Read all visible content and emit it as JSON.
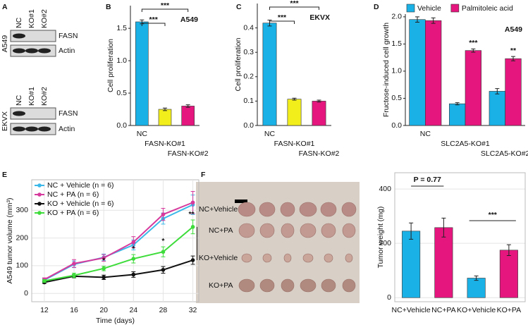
{
  "panel_a": {
    "panel": "A",
    "columns": [
      "NC",
      "KO#1",
      "KO#2"
    ],
    "blots": [
      {
        "cell_line": "A549",
        "rows": [
          "FASN",
          "Actin"
        ]
      },
      {
        "cell_line": "EKVX",
        "rows": [
          "FASN",
          "Actin"
        ]
      }
    ]
  },
  "panel_f_photo": {
    "panel": "F",
    "rows": [
      "NC+Vehicle",
      "NC+PA",
      "KO+Vehicle",
      "KO+PA"
    ]
  },
  "chart_data": [
    {
      "panel": "B",
      "type": "bar",
      "ylabel": "Cell proliferation",
      "categories": [
        "NC",
        "FASN-KO#1",
        "FASN-KO#2"
      ],
      "values": [
        1.6,
        0.25,
        0.3
      ],
      "errors": [
        0.03,
        0.02,
        0.02
      ],
      "colors": [
        "#1ab1e6",
        "#f2ee1c",
        "#e5177e"
      ],
      "ylim": [
        0,
        1.85
      ],
      "yticks": [
        {
          "value": 0,
          "label": "0.0"
        },
        0.5,
        {
          "value": 1,
          "label": "1.0"
        },
        1.5
      ],
      "annotations": [
        "A549",
        "***",
        "***"
      ]
    },
    {
      "panel": "C",
      "type": "bar",
      "ylabel": "Cell proliferation",
      "categories": [
        "NC",
        "FASN-KO#1",
        "FASN-KO#2"
      ],
      "values": [
        0.42,
        0.108,
        0.1
      ],
      "errors": [
        0.012,
        0.004,
        0.004
      ],
      "colors": [
        "#1ab1e6",
        "#f2ee1c",
        "#e5177e"
      ],
      "ylim": [
        0,
        0.5
      ],
      "yticks": [
        {
          "value": 0,
          "label": "0.0"
        },
        0.1,
        0.2,
        0.3,
        0.4
      ],
      "annotations": [
        "EKVX",
        "***",
        "***"
      ]
    },
    {
      "panel": "D",
      "type": "bar",
      "ylabel": "Fructose-induced cell growth",
      "categories": [
        "NC",
        "SLC2A5-KO#1",
        "SLC2A5-KO#2"
      ],
      "series": [
        {
          "name": "Vehicle",
          "color": "#1ab1e6",
          "values": [
            1.95,
            0.4,
            0.63
          ],
          "errors": [
            0.05,
            0.02,
            0.05
          ]
        },
        {
          "name": "Palmitoleic acid",
          "color": "#e5177e",
          "values": [
            1.93,
            1.38,
            1.23
          ],
          "errors": [
            0.05,
            0.03,
            0.04
          ]
        }
      ],
      "legend": "top",
      "ylim": [
        0,
        2.05
      ],
      "yticks": [
        {
          "value": 0,
          "label": "0.0"
        },
        0.5,
        {
          "value": 1,
          "label": "1.0"
        },
        1.5,
        {
          "value": 2,
          "label": "2.0"
        }
      ],
      "annotations": [
        "A549",
        "***",
        "**"
      ]
    },
    {
      "panel": "E",
      "type": "line",
      "ylabel": "A549 tumor volume (mm³)",
      "xlabel": "Time (days)",
      "x": [
        12,
        16,
        20,
        24,
        28,
        32
      ],
      "series": [
        {
          "name": "NC + Vehicle (n = 6)",
          "color": "#3bb8e8",
          "values": [
            48,
            105,
            130,
            175,
            270,
            320
          ],
          "errors": [
            6,
            12,
            12,
            18,
            20,
            35
          ]
        },
        {
          "name": "NC + PA (n = 6)",
          "color": "#d63a9c",
          "values": [
            50,
            108,
            128,
            185,
            285,
            328
          ],
          "errors": [
            6,
            14,
            12,
            20,
            22,
            40
          ]
        },
        {
          "name": "KO + Vehicle (n = 6)",
          "color": "#111111",
          "values": [
            40,
            62,
            58,
            68,
            85,
            120
          ],
          "errors": [
            4,
            6,
            8,
            10,
            12,
            15
          ]
        },
        {
          "name": "KO + PA (n = 6)",
          "color": "#3ddc3a",
          "values": [
            45,
            65,
            90,
            125,
            150,
            240
          ],
          "errors": [
            5,
            8,
            8,
            15,
            18,
            25
          ]
        }
      ],
      "legend": "top-left",
      "grid": true,
      "xlim": [
        10.3,
        32.8
      ],
      "xticks": [
        12,
        16,
        20,
        24,
        28,
        32
      ],
      "ylim": [
        -30,
        410
      ],
      "yticks": [
        0,
        100,
        200,
        300
      ],
      "annotations": [
        "*",
        "*",
        "*",
        "**"
      ]
    },
    {
      "type": "bar",
      "ylabel": "Tumor weight (mg)",
      "categories": [
        "NC+Vehicle",
        "NC+PA",
        "KO+Vehicle",
        "KO+PA"
      ],
      "values": [
        245,
        258,
        72,
        175
      ],
      "errors": [
        30,
        35,
        8,
        20
      ],
      "colors": [
        "#1ab1e6",
        "#e5177e",
        "#1ab1e6",
        "#e5177e"
      ],
      "grid": true,
      "ylim": [
        -15,
        460
      ],
      "yticks": [
        0,
        200,
        400
      ],
      "annotations": [
        "P = 0.77",
        "***"
      ]
    }
  ]
}
